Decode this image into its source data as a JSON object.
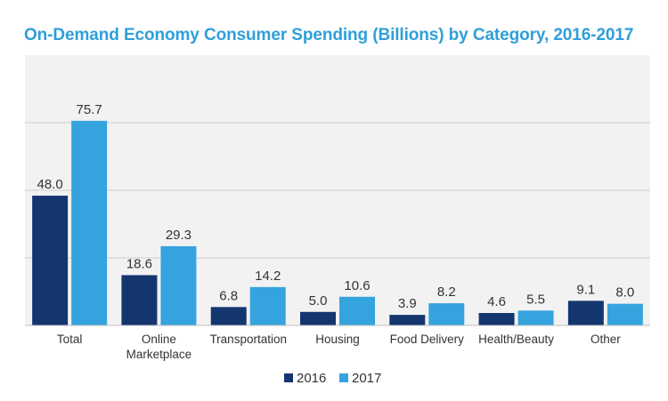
{
  "chart_data": {
    "type": "bar",
    "title": "On-Demand Economy Consumer Spending (Billions) by Category, 2016-2017",
    "categories": [
      [
        "Total"
      ],
      [
        "Online",
        "Marketplace"
      ],
      [
        "Transportation"
      ],
      [
        "Housing"
      ],
      [
        "Food Delivery"
      ],
      [
        "Health/Beauty"
      ],
      [
        "Other"
      ]
    ],
    "series": [
      {
        "name": "2016",
        "color": "#14366f",
        "values": [
          48.0,
          18.6,
          6.8,
          5.0,
          3.9,
          4.6,
          9.1
        ]
      },
      {
        "name": "2017",
        "color": "#35a4de",
        "values": [
          75.7,
          29.3,
          14.2,
          10.6,
          8.2,
          5.5,
          8.0
        ]
      }
    ],
    "ylim": [
      0,
      100
    ],
    "grid": true,
    "legend_position": "bottom-center",
    "value_labels": true,
    "plot_background": "#f2f2f2"
  }
}
